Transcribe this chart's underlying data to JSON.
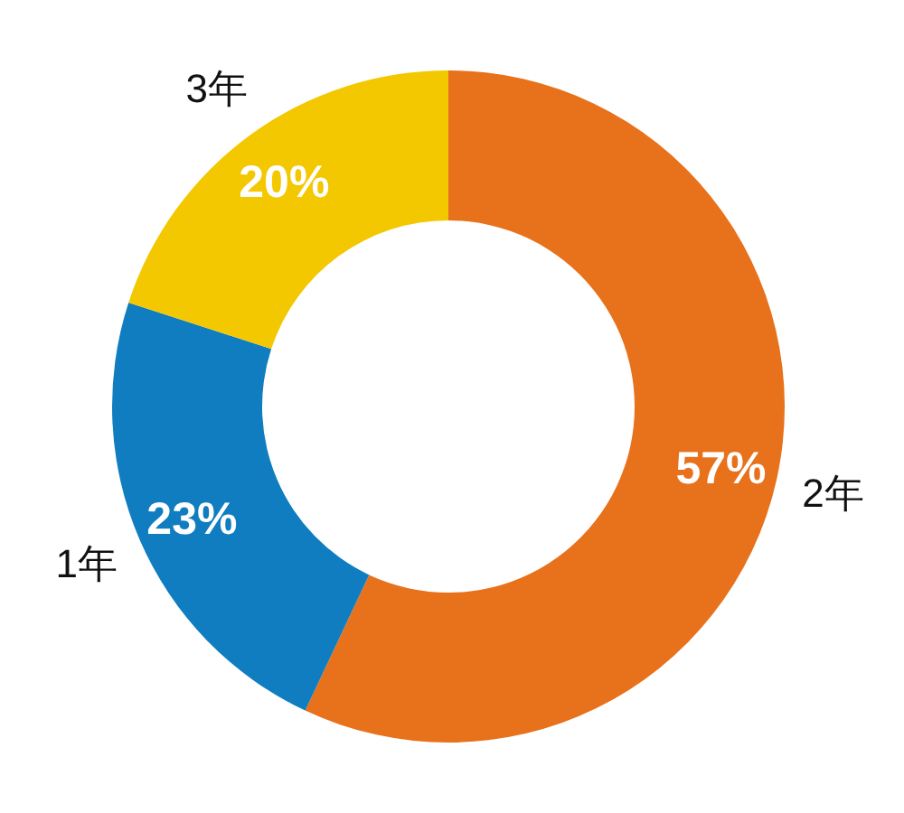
{
  "chart_data": {
    "type": "donut",
    "categories": [
      "2年",
      "1年",
      "3年"
    ],
    "values": [
      57,
      23,
      20
    ],
    "colors": [
      "#e8711c",
      "#0f7dbf",
      "#f3c800"
    ],
    "value_labels": [
      "57%",
      "23%",
      "20%"
    ]
  }
}
